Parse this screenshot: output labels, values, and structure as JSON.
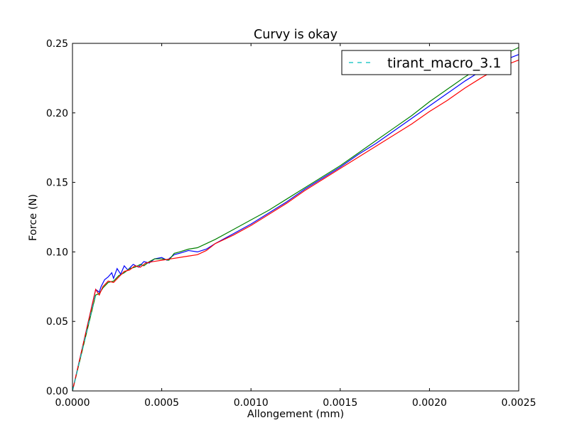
{
  "chart_data": {
    "type": "line",
    "title": "Curvy is okay",
    "xlabel": "Allongement (mm)",
    "ylabel": "Force (N)",
    "xlim": [
      0.0,
      0.0025
    ],
    "ylim": [
      0.0,
      0.25
    ],
    "x_ticks": [
      "0.0000",
      "0.0005",
      "0.0010",
      "0.0015",
      "0.0020",
      "0.0025"
    ],
    "y_ticks": [
      "0.00",
      "0.05",
      "0.10",
      "0.15",
      "0.20",
      "0.25"
    ],
    "grid": false,
    "legend": {
      "position": "top-right",
      "entries": [
        {
          "label": "tirant_macro_3.1",
          "color": "#00bfbf",
          "style": "dashed"
        }
      ]
    },
    "series": [
      {
        "color": "#0000ff",
        "style": "solid",
        "points": [
          [
            0.0,
            0.0
          ],
          [
            0.00013,
            0.073
          ],
          [
            0.00015,
            0.071
          ],
          [
            0.00016,
            0.075
          ],
          [
            0.00018,
            0.08
          ],
          [
            0.0002,
            0.082
          ],
          [
            0.00022,
            0.085
          ],
          [
            0.00023,
            0.081
          ],
          [
            0.00025,
            0.088
          ],
          [
            0.00027,
            0.084
          ],
          [
            0.00029,
            0.09
          ],
          [
            0.00031,
            0.087
          ],
          [
            0.00034,
            0.091
          ],
          [
            0.00037,
            0.089
          ],
          [
            0.0004,
            0.093
          ],
          [
            0.00043,
            0.092
          ],
          [
            0.00046,
            0.095
          ],
          [
            0.0005,
            0.096
          ],
          [
            0.00053,
            0.094
          ],
          [
            0.00057,
            0.098
          ],
          [
            0.0006,
            0.099
          ],
          [
            0.00065,
            0.101
          ],
          [
            0.0007,
            0.1
          ],
          [
            0.00075,
            0.102
          ],
          [
            0.0008,
            0.106
          ],
          [
            0.0009,
            0.113
          ],
          [
            0.001,
            0.12
          ],
          [
            0.0011,
            0.128
          ],
          [
            0.0012,
            0.136
          ],
          [
            0.0013,
            0.145
          ],
          [
            0.0014,
            0.153
          ],
          [
            0.0015,
            0.161
          ],
          [
            0.0016,
            0.17
          ],
          [
            0.0017,
            0.178
          ],
          [
            0.0018,
            0.187
          ],
          [
            0.0019,
            0.196
          ],
          [
            0.002,
            0.205
          ],
          [
            0.0021,
            0.214
          ],
          [
            0.0022,
            0.223
          ],
          [
            0.0023,
            0.231
          ],
          [
            0.0024,
            0.237
          ],
          [
            0.0025,
            0.242
          ]
        ]
      },
      {
        "color": "#008000",
        "style": "solid",
        "points": [
          [
            0.0,
            0.0
          ],
          [
            0.00013,
            0.069
          ],
          [
            0.00015,
            0.07
          ],
          [
            0.00017,
            0.074
          ],
          [
            0.0002,
            0.078
          ],
          [
            0.00023,
            0.079
          ],
          [
            0.00026,
            0.083
          ],
          [
            0.00029,
            0.085
          ],
          [
            0.00032,
            0.088
          ],
          [
            0.00035,
            0.089
          ],
          [
            0.00038,
            0.091
          ],
          [
            0.0004,
            0.09
          ],
          [
            0.00043,
            0.093
          ],
          [
            0.00046,
            0.095
          ],
          [
            0.0005,
            0.095
          ],
          [
            0.00054,
            0.094
          ],
          [
            0.00057,
            0.099
          ],
          [
            0.0006,
            0.1
          ],
          [
            0.00065,
            0.102
          ],
          [
            0.0007,
            0.103
          ],
          [
            0.00075,
            0.106
          ],
          [
            0.0008,
            0.109
          ],
          [
            0.0009,
            0.116
          ],
          [
            0.001,
            0.123
          ],
          [
            0.0011,
            0.13
          ],
          [
            0.0012,
            0.138
          ],
          [
            0.0013,
            0.146
          ],
          [
            0.0014,
            0.154
          ],
          [
            0.0015,
            0.162
          ],
          [
            0.0016,
            0.171
          ],
          [
            0.0017,
            0.18
          ],
          [
            0.0018,
            0.189
          ],
          [
            0.0019,
            0.198
          ],
          [
            0.002,
            0.208
          ],
          [
            0.0021,
            0.217
          ],
          [
            0.0022,
            0.226
          ],
          [
            0.0023,
            0.234
          ],
          [
            0.0024,
            0.241
          ],
          [
            0.0025,
            0.247
          ]
        ]
      },
      {
        "color": "#ff0000",
        "style": "solid",
        "points": [
          [
            0.0,
            0.0
          ],
          [
            0.00013,
            0.073
          ],
          [
            0.00015,
            0.069
          ],
          [
            0.00017,
            0.075
          ],
          [
            0.0002,
            0.079
          ],
          [
            0.00023,
            0.078
          ],
          [
            0.00026,
            0.082
          ],
          [
            0.00029,
            0.086
          ],
          [
            0.00032,
            0.087
          ],
          [
            0.00035,
            0.09
          ],
          [
            0.00038,
            0.089
          ],
          [
            0.00041,
            0.092
          ],
          [
            0.00045,
            0.093
          ],
          [
            0.0005,
            0.094
          ],
          [
            0.00055,
            0.095
          ],
          [
            0.0006,
            0.096
          ],
          [
            0.00065,
            0.097
          ],
          [
            0.0007,
            0.098
          ],
          [
            0.00075,
            0.101
          ],
          [
            0.0008,
            0.106
          ],
          [
            0.0009,
            0.112
          ],
          [
            0.001,
            0.119
          ],
          [
            0.0011,
            0.127
          ],
          [
            0.0012,
            0.135
          ],
          [
            0.0013,
            0.144
          ],
          [
            0.0014,
            0.152
          ],
          [
            0.0015,
            0.16
          ],
          [
            0.0016,
            0.168
          ],
          [
            0.0017,
            0.176
          ],
          [
            0.0018,
            0.184
          ],
          [
            0.0019,
            0.192
          ],
          [
            0.002,
            0.201
          ],
          [
            0.0021,
            0.209
          ],
          [
            0.0022,
            0.218
          ],
          [
            0.0023,
            0.226
          ],
          [
            0.0024,
            0.233
          ],
          [
            0.0025,
            0.238
          ]
        ]
      },
      {
        "color": "#00bfbf",
        "style": "dashed",
        "name": "tirant_macro_3.1",
        "points": [
          [
            0.0,
            0.0
          ],
          [
            0.00013,
            0.07
          ]
        ]
      }
    ]
  }
}
